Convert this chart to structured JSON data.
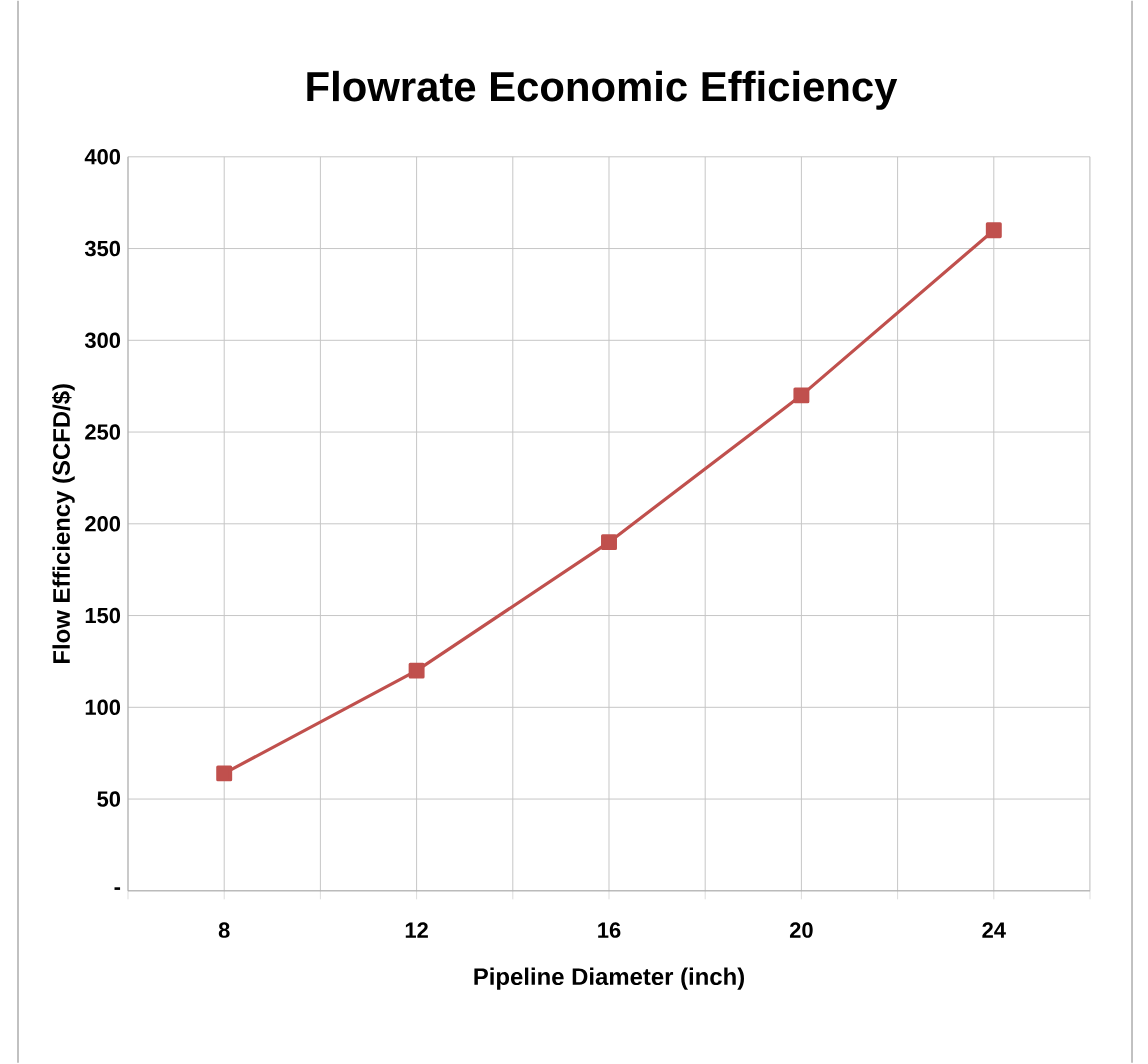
{
  "chart_data": {
    "type": "line",
    "title": "Flowrate Economic Efficiency",
    "xlabel": "Pipeline Diameter (inch)",
    "ylabel": "Flow Efficiency  (SCFD/$)",
    "x": [
      8,
      12,
      16,
      20,
      24
    ],
    "series": [
      {
        "color": "#c0504d",
        "values": [
          64,
          120,
          190,
          270,
          360
        ]
      }
    ],
    "xlim": [
      6,
      26
    ],
    "xticks": [
      {
        "value": 6,
        "label": null
      },
      8,
      {
        "value": 10,
        "label": null
      },
      12,
      {
        "value": 14,
        "label": null
      },
      16,
      {
        "value": 18,
        "label": null
      },
      20,
      {
        "value": 22,
        "label": null
      },
      24,
      {
        "value": 26,
        "label": null
      }
    ],
    "ylim": [
      0,
      400
    ],
    "yticks": [
      {
        "value": 0,
        "label": "-"
      },
      50,
      100,
      150,
      200,
      250,
      300,
      350,
      400
    ],
    "grid": true,
    "marker": "square",
    "line_style": "solid"
  }
}
